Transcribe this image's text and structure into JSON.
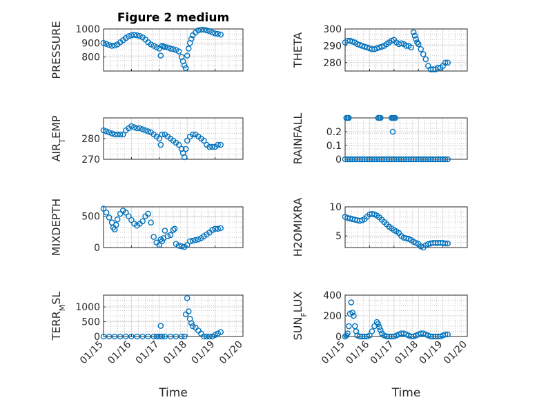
{
  "title": "Figure 2 medium",
  "colors": {
    "marker": "#0072bd",
    "axis": "#262626",
    "grid": "#dcdcdc"
  },
  "chart_data": [
    {
      "id": "pressure",
      "type": "scatter",
      "marker": "circle",
      "ylabel": "PRESSURE",
      "ylim": [
        700,
        1000
      ],
      "yticks": [
        800,
        900,
        1000
      ],
      "xlim": [
        0,
        5
      ],
      "xticks": [],
      "grid": true,
      "x": [
        0.0,
        0.1,
        0.2,
        0.3,
        0.4,
        0.5,
        0.6,
        0.7,
        0.8,
        0.9,
        1.0,
        1.1,
        1.2,
        1.3,
        1.4,
        1.5,
        1.6,
        1.7,
        1.8,
        1.9,
        2.0,
        2.05,
        2.1,
        2.15,
        2.2,
        2.3,
        2.4,
        2.5,
        2.6,
        2.7,
        2.8,
        2.85,
        2.9,
        2.95,
        3.0,
        3.05,
        3.1,
        3.15,
        3.2,
        3.3,
        3.4,
        3.5,
        3.6,
        3.7,
        3.8,
        3.9,
        4.0,
        4.1,
        4.2
      ],
      "y": [
        900,
        893,
        885,
        880,
        882,
        890,
        905,
        920,
        935,
        948,
        955,
        958,
        955,
        950,
        940,
        925,
        905,
        890,
        880,
        870,
        860,
        810,
        880,
        875,
        872,
        868,
        860,
        855,
        850,
        840,
        800,
        770,
        740,
        720,
        810,
        860,
        900,
        930,
        955,
        975,
        990,
        995,
        995,
        990,
        985,
        975,
        968,
        965,
        960
      ]
    },
    {
      "id": "theta",
      "type": "scatter",
      "marker": "circle",
      "ylabel": "THETA",
      "ylim": [
        275,
        300
      ],
      "yticks": [
        280,
        290,
        300
      ],
      "xlim": [
        0,
        5
      ],
      "xticks": [],
      "grid": true,
      "x": [
        0.0,
        0.1,
        0.2,
        0.3,
        0.4,
        0.5,
        0.6,
        0.7,
        0.8,
        0.9,
        1.0,
        1.1,
        1.2,
        1.3,
        1.4,
        1.5,
        1.6,
        1.7,
        1.8,
        1.9,
        2.0,
        2.1,
        2.2,
        2.3,
        2.4,
        2.5,
        2.6,
        2.7,
        2.8,
        2.85,
        2.9,
        2.95,
        3.0,
        3.1,
        3.2,
        3.3,
        3.4,
        3.5,
        3.6,
        3.7,
        3.8,
        3.9,
        4.0,
        4.1,
        4.2
      ],
      "y": [
        292,
        293,
        293,
        292.5,
        292,
        291,
        290.5,
        290,
        289.5,
        289,
        288.5,
        288,
        288,
        288.5,
        289,
        289.5,
        290,
        291,
        292,
        293,
        293.5,
        292,
        291,
        291.5,
        291,
        290,
        290,
        289,
        298,
        296,
        294,
        292,
        291,
        288,
        285,
        282,
        278,
        276,
        276,
        276,
        277,
        277,
        278,
        280,
        280
      ]
    },
    {
      "id": "air_temp",
      "type": "scatter",
      "marker": "circle",
      "ylabel": "AIR_TEMP",
      "ylim": [
        270,
        290
      ],
      "yticks": [
        270,
        280
      ],
      "xlim": [
        0,
        5
      ],
      "xticks": [],
      "grid": true,
      "x": [
        0.0,
        0.1,
        0.2,
        0.3,
        0.4,
        0.5,
        0.6,
        0.7,
        0.8,
        0.9,
        1.0,
        1.1,
        1.2,
        1.3,
        1.4,
        1.5,
        1.6,
        1.7,
        1.8,
        1.9,
        2.0,
        2.05,
        2.1,
        2.2,
        2.3,
        2.4,
        2.5,
        2.6,
        2.7,
        2.8,
        2.85,
        2.9,
        2.95,
        3.0,
        3.1,
        3.2,
        3.3,
        3.4,
        3.5,
        3.6,
        3.7,
        3.8,
        3.9,
        4.0,
        4.1,
        4.2
      ],
      "y": [
        284,
        283.5,
        283,
        282.5,
        282,
        282,
        282,
        282,
        284,
        285,
        286,
        285.5,
        285,
        285,
        284.5,
        284,
        283.5,
        283,
        282,
        281,
        280,
        277,
        282,
        282,
        281,
        280,
        279,
        278,
        277,
        275,
        273,
        271,
        275,
        279,
        281,
        282,
        282,
        281,
        280,
        279,
        277,
        276,
        276,
        276,
        277,
        277
      ]
    },
    {
      "id": "rainfall",
      "type": "scatter",
      "marker": "circle",
      "ylabel": "RAINFALL",
      "ylim": [
        0,
        0.3
      ],
      "yticks": [
        0,
        0.1,
        0.2
      ],
      "xlim": [
        0,
        5
      ],
      "xticks": [],
      "grid": true,
      "x": [
        0.0,
        0.1,
        0.2,
        0.3,
        0.4,
        0.5,
        0.6,
        0.7,
        0.8,
        0.9,
        1.0,
        1.1,
        1.2,
        1.3,
        1.4,
        1.5,
        1.6,
        1.7,
        1.8,
        1.9,
        2.0,
        2.1,
        2.2,
        2.3,
        2.4,
        2.5,
        2.6,
        2.7,
        2.8,
        2.9,
        3.0,
        3.1,
        3.2,
        3.3,
        3.4,
        3.5,
        3.6,
        3.7,
        3.8,
        3.9,
        4.0,
        4.1,
        4.2,
        0.05,
        0.1,
        0.15,
        1.35,
        1.4,
        1.45,
        1.9,
        1.95,
        2.0,
        2.05,
        1.95
      ],
      "y": [
        0,
        0,
        0,
        0,
        0,
        0,
        0,
        0,
        0,
        0,
        0,
        0,
        0,
        0,
        0,
        0,
        0,
        0,
        0,
        0,
        0,
        0,
        0,
        0,
        0,
        0,
        0,
        0,
        0,
        0,
        0,
        0,
        0,
        0,
        0,
        0,
        0,
        0,
        0,
        0,
        0,
        0,
        0,
        0.3,
        0.3,
        0.3,
        0.3,
        0.3,
        0.3,
        0.3,
        0.3,
        0.3,
        0.3,
        0.2
      ]
    },
    {
      "id": "mixdepth",
      "type": "scatter",
      "marker": "circle",
      "ylabel": "MIXDEPTH",
      "ylim": [
        0,
        650
      ],
      "yticks": [
        0,
        500
      ],
      "xlim": [
        0,
        5
      ],
      "xticks": [],
      "grid": true,
      "x": [
        0.0,
        0.1,
        0.2,
        0.3,
        0.35,
        0.4,
        0.45,
        0.5,
        0.6,
        0.7,
        0.8,
        0.9,
        1.0,
        1.1,
        1.2,
        1.3,
        1.4,
        1.5,
        1.6,
        1.7,
        1.8,
        1.9,
        2.0,
        2.05,
        2.1,
        2.15,
        2.2,
        2.3,
        2.4,
        2.5,
        2.55,
        2.6,
        2.7,
        2.8,
        2.9,
        3.0,
        3.1,
        3.2,
        3.3,
        3.4,
        3.5,
        3.6,
        3.7,
        3.8,
        3.9,
        4.0,
        4.1,
        4.2
      ],
      "y": [
        620,
        560,
        480,
        400,
        320,
        290,
        360,
        450,
        540,
        590,
        560,
        500,
        440,
        380,
        350,
        380,
        420,
        500,
        540,
        400,
        170,
        80,
        40,
        130,
        100,
        150,
        270,
        180,
        200,
        280,
        300,
        60,
        30,
        20,
        10,
        40,
        100,
        110,
        120,
        130,
        150,
        180,
        210,
        240,
        280,
        300,
        300,
        310
      ]
    },
    {
      "id": "h2omixra",
      "type": "scatter",
      "marker": "circle",
      "ylabel": "H2OMIXRA",
      "ylim": [
        3,
        10
      ],
      "yticks": [
        5,
        10
      ],
      "xlim": [
        0,
        5
      ],
      "xticks": [],
      "grid": true,
      "x": [
        0.0,
        0.1,
        0.2,
        0.3,
        0.4,
        0.5,
        0.6,
        0.7,
        0.8,
        0.9,
        1.0,
        1.1,
        1.2,
        1.3,
        1.4,
        1.5,
        1.6,
        1.7,
        1.8,
        1.9,
        2.0,
        2.1,
        2.2,
        2.3,
        2.4,
        2.5,
        2.6,
        2.7,
        2.8,
        2.9,
        3.0,
        3.1,
        3.2,
        3.3,
        3.4,
        3.5,
        3.6,
        3.7,
        3.8,
        3.9,
        4.0,
        4.1,
        4.2
      ],
      "y": [
        8.3,
        8.1,
        8.0,
        7.9,
        7.8,
        7.7,
        7.6,
        7.7,
        7.9,
        8.3,
        8.7,
        8.8,
        8.7,
        8.5,
        8.2,
        7.8,
        7.4,
        7.0,
        6.6,
        6.3,
        6.0,
        5.8,
        5.5,
        5.0,
        4.7,
        4.6,
        4.5,
        4.3,
        4.0,
        3.8,
        3.6,
        3.2,
        3.0,
        3.4,
        3.6,
        3.7,
        3.8,
        3.8,
        3.8,
        3.8,
        3.8,
        3.7,
        3.7
      ]
    },
    {
      "id": "terr_msl",
      "type": "scatter",
      "marker": "circle",
      "ylabel": "TERR_MSL",
      "ylim": [
        0,
        1400
      ],
      "yticks": [
        0,
        500,
        1000
      ],
      "xlim": [
        0,
        5
      ],
      "xticks": [
        "01/15",
        "01/16",
        "01/17",
        "01/18",
        "01/19",
        "01/20"
      ],
      "xlabel": "Time",
      "grid": true,
      "x": [
        0.0,
        0.2,
        0.4,
        0.6,
        0.8,
        1.0,
        1.2,
        1.4,
        1.6,
        1.8,
        1.9,
        2.0,
        2.05,
        2.1,
        2.2,
        2.4,
        2.6,
        2.8,
        2.9,
        2.95,
        3.0,
        3.05,
        3.1,
        3.15,
        3.2,
        3.3,
        3.4,
        3.5,
        3.6,
        3.7,
        3.8,
        3.9,
        4.0,
        4.1,
        4.2
      ],
      "y": [
        0,
        0,
        0,
        0,
        0,
        0,
        0,
        0,
        0,
        0,
        0,
        0,
        360,
        0,
        0,
        0,
        0,
        0,
        0,
        750,
        1300,
        850,
        600,
        450,
        350,
        300,
        200,
        100,
        0,
        0,
        0,
        0,
        50,
        100,
        150
      ]
    },
    {
      "id": "sun_flux",
      "type": "scatter",
      "marker": "circle",
      "ylabel": "SUN_FLUX",
      "ylim": [
        0,
        400
      ],
      "yticks": [
        0,
        200,
        400
      ],
      "xlim": [
        0,
        5
      ],
      "xticks": [
        "01/15",
        "01/16",
        "01/17",
        "01/18",
        "01/19",
        "01/20"
      ],
      "xlabel": "Time",
      "grid": true,
      "x": [
        0.0,
        0.05,
        0.1,
        0.15,
        0.2,
        0.25,
        0.3,
        0.35,
        0.4,
        0.45,
        0.5,
        0.6,
        0.7,
        0.8,
        0.9,
        1.0,
        1.1,
        1.2,
        1.3,
        1.35,
        1.4,
        1.45,
        1.5,
        1.6,
        1.7,
        1.8,
        1.9,
        2.0,
        2.1,
        2.2,
        2.3,
        2.4,
        2.5,
        2.6,
        2.7,
        2.8,
        2.9,
        3.0,
        3.1,
        3.2,
        3.3,
        3.4,
        3.5,
        3.6,
        3.7,
        3.8,
        3.9,
        4.0,
        4.1,
        4.2
      ],
      "y": [
        0,
        10,
        30,
        100,
        220,
        330,
        230,
        200,
        100,
        50,
        10,
        0,
        0,
        0,
        0,
        10,
        50,
        100,
        140,
        120,
        90,
        60,
        30,
        10,
        0,
        0,
        0,
        0,
        10,
        20,
        30,
        30,
        20,
        10,
        0,
        0,
        10,
        20,
        30,
        30,
        20,
        10,
        0,
        0,
        0,
        0,
        0,
        10,
        20,
        20
      ]
    }
  ]
}
